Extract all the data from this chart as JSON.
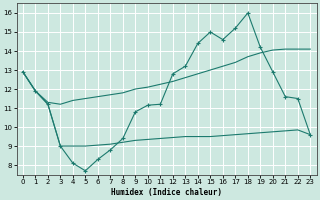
{
  "title": "",
  "xlabel": "Humidex (Indice chaleur)",
  "xlim": [
    -0.5,
    23.5
  ],
  "ylim": [
    7.5,
    16.5
  ],
  "xticks": [
    0,
    1,
    2,
    3,
    4,
    5,
    6,
    7,
    8,
    9,
    10,
    11,
    12,
    13,
    14,
    15,
    16,
    17,
    18,
    19,
    20,
    21,
    22,
    23
  ],
  "yticks": [
    8,
    9,
    10,
    11,
    12,
    13,
    14,
    15,
    16
  ],
  "line_color": "#1c7a6e",
  "bg_color": "#cde8e0",
  "grid_color": "#ffffff",
  "lines": [
    {
      "x": [
        0,
        1,
        2,
        3,
        4,
        5,
        6,
        7,
        8,
        9,
        10,
        11,
        12,
        13,
        14,
        15,
        16,
        17,
        18,
        19,
        20,
        21,
        22,
        23
      ],
      "y": [
        12.9,
        11.9,
        11.2,
        9.0,
        8.1,
        7.7,
        8.3,
        8.8,
        9.4,
        10.8,
        11.15,
        11.2,
        12.8,
        13.2,
        14.4,
        15.0,
        14.6,
        15.2,
        16.0,
        14.2,
        12.9,
        11.6,
        11.5,
        9.6
      ],
      "marker": "+"
    },
    {
      "x": [
        0,
        1,
        2,
        3,
        4,
        5,
        6,
        7,
        8,
        9,
        10,
        11,
        12,
        13,
        14,
        15,
        16,
        17,
        18,
        19,
        20,
        21,
        22,
        23
      ],
      "y": [
        12.9,
        11.9,
        11.3,
        11.2,
        11.4,
        11.5,
        11.6,
        11.7,
        11.8,
        12.0,
        12.1,
        12.25,
        12.4,
        12.6,
        12.8,
        13.0,
        13.2,
        13.4,
        13.7,
        13.9,
        14.05,
        14.1,
        14.1,
        14.1
      ],
      "marker": null
    },
    {
      "x": [
        0,
        1,
        2,
        3,
        4,
        5,
        6,
        7,
        8,
        9,
        10,
        11,
        12,
        13,
        14,
        15,
        16,
        17,
        18,
        19,
        20,
        21,
        22,
        23
      ],
      "y": [
        12.9,
        11.9,
        11.2,
        9.0,
        9.0,
        9.0,
        9.05,
        9.1,
        9.2,
        9.3,
        9.35,
        9.4,
        9.45,
        9.5,
        9.5,
        9.5,
        9.55,
        9.6,
        9.65,
        9.7,
        9.75,
        9.8,
        9.85,
        9.6
      ],
      "marker": null
    }
  ]
}
